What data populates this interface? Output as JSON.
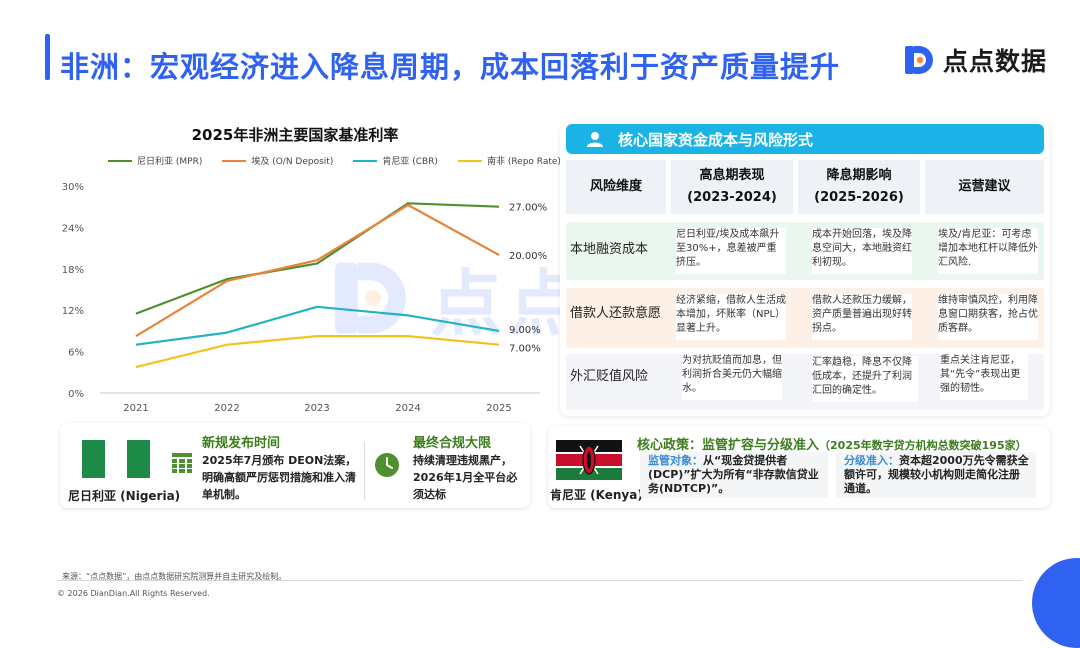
{
  "page": {
    "title": "非洲：宏观经济进入降息周期，成本回落利于资产质量提升",
    "logo_text": "点点数据",
    "watermark_text": "点点数据",
    "accent_color": "#2f62f0"
  },
  "chart_data": {
    "type": "line",
    "title": "2025年非洲主要国家基准利率",
    "x": [
      "2021",
      "2022",
      "2023",
      "2024",
      "2025"
    ],
    "ylim": [
      0,
      30
    ],
    "yticks": [
      "0%",
      "6%",
      "12%",
      "18%",
      "24%",
      "30%"
    ],
    "ytick_values": [
      0,
      6,
      12,
      18,
      24,
      30
    ],
    "grid": false,
    "legend_position": "top",
    "series": [
      {
        "name": "尼日利亚 (MPR)",
        "color": "#4f8f2f",
        "values": [
          11.5,
          16.5,
          18.75,
          27.5,
          27.0
        ],
        "end_label": "27.00%"
      },
      {
        "name": "埃及 (O/N Deposit)",
        "color": "#e8843c",
        "values": [
          8.25,
          16.25,
          19.25,
          27.25,
          20.0
        ],
        "end_label": "20.00%"
      },
      {
        "name": "肯尼亚 (CBR)",
        "color": "#22b4c0",
        "values": [
          7.0,
          8.75,
          12.5,
          11.25,
          9.0
        ],
        "end_label": "9.00%"
      },
      {
        "name": "南非 (Repo Rate)",
        "color": "#f5c21b",
        "values": [
          3.75,
          7.0,
          8.25,
          8.25,
          7.0
        ],
        "end_label": "7.00%"
      }
    ]
  },
  "table": {
    "title": "核心国家资金成本与风险形式",
    "columns": [
      {
        "line1": "风险维度",
        "line2": ""
      },
      {
        "line1": "高息期表现",
        "line2": "(2023-2024)"
      },
      {
        "line1": "降息期影响",
        "line2": "(2025-2026)"
      },
      {
        "line1": "运营建议",
        "line2": ""
      }
    ],
    "rows": [
      {
        "label": "本地融资成本",
        "c1": "尼日利亚/埃及成本飙升至30%+，息差被严重挤压。",
        "c2": "成本开始回落，埃及降息空间大，本地融资红利初现。",
        "c3": "埃及/肯尼亚：可考虑增加本地杠杆以降低外汇风险."
      },
      {
        "label": "借款人还款意愿",
        "c1": "经济紧缩，借款人生活成本增加，坏账率（NPL）显著上升。",
        "c2": "借款人还款压力缓解，资产质量普遍出现好转拐点。",
        "c3": "维持审慎风控，利用降息窗口期获客，抢占优质客群。"
      },
      {
        "label": "外汇贬值风险",
        "c1": "为对抗贬值而加息，但利润折合美元仍大幅缩水。",
        "c2": "汇率趋稳，降息不仅降低成本，还提升了利润汇回的确定性。",
        "c3": "重点关注肯尼亚，其“先令”表现出更强的韧性。"
      }
    ]
  },
  "nigeria": {
    "country": "尼日利亚 (Nigeria)",
    "item1_heading": "新规发布时间",
    "item1_body": "2025年7月颁布 DEON法案，明确高额严厉惩罚措施和准入清单机制。",
    "item2_heading": "最终合规大限",
    "item2_body": "持续清理违规黑产，2026年1月全平台必须达标"
  },
  "kenya": {
    "country": "肯尼亚 (Kenya)",
    "heading": "核心政策：监管扩容与分级准入",
    "heading_note": "（2025年数字贷方机构总数突破195家）",
    "item1_label": "监管对象：",
    "item1_text": "从“现金贷提供者(DCP)”扩大为所有“非存款信贷业务(NDTCP)”。",
    "item2_label": "分级准入：",
    "item2_text": "资本超2000万先令需获全额许可，规模较小机构则走简化注册通道。"
  },
  "footer": {
    "source": "来源：“点点数据”，由点点数据研究院测算并自主研究及绘制。",
    "copyright": "© 2026 DianDian.All Rights Reserved."
  }
}
